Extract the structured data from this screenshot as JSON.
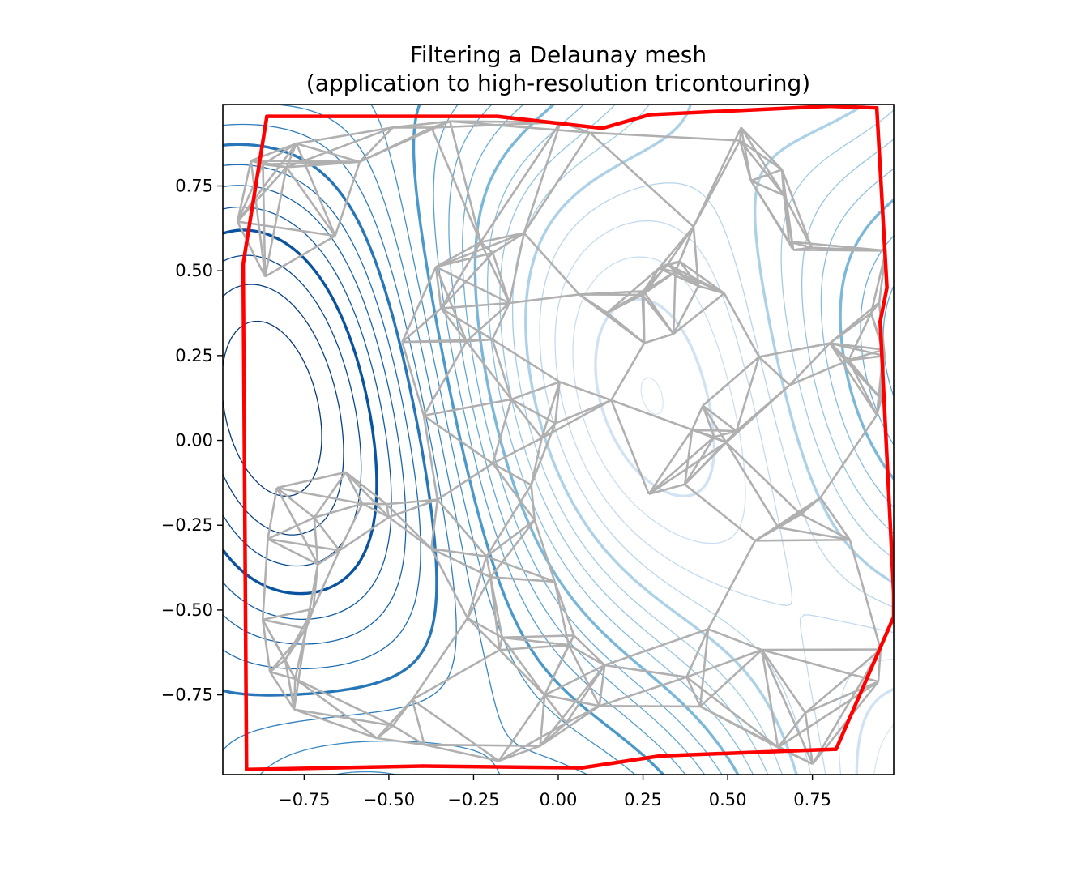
{
  "chart_data": {
    "type": "contour",
    "title_line1": "Filtering a Delaunay mesh",
    "title_line2": "(application to high-resolution tricontouring)",
    "xlim": [
      -0.99,
      0.99
    ],
    "ylim": [
      -0.985,
      0.99
    ],
    "x_ticks": [
      {
        "value": -0.75,
        "label": "−0.75"
      },
      {
        "value": -0.5,
        "label": "−0.50"
      },
      {
        "value": -0.25,
        "label": "−0.25"
      },
      {
        "value": 0.0,
        "label": "0.00"
      },
      {
        "value": 0.25,
        "label": "0.25"
      },
      {
        "value": 0.5,
        "label": "0.50"
      },
      {
        "value": 0.75,
        "label": "0.75"
      }
    ],
    "y_ticks": [
      {
        "value": 0.75,
        "label": "0.75"
      },
      {
        "value": 0.5,
        "label": "0.50"
      },
      {
        "value": 0.25,
        "label": "0.25"
      },
      {
        "value": 0.0,
        "label": "0.00"
      },
      {
        "value": -0.25,
        "label": "−0.25"
      },
      {
        "value": -0.5,
        "label": "−0.50"
      },
      {
        "value": -0.75,
        "label": "−0.75"
      }
    ],
    "grid": false,
    "colors": {
      "mesh": "#b0b0b0",
      "masked_edges": "#ff0000",
      "contour_colormap": "Blues_r",
      "contour_dark": "#08306b",
      "contour_light": "#deebf7"
    },
    "masked_boundary": [
      [
        -0.86,
        0.955
      ],
      [
        -0.18,
        0.955
      ],
      [
        0.13,
        0.92
      ],
      [
        0.27,
        0.96
      ],
      [
        0.8,
        0.985
      ],
      [
        0.94,
        0.98
      ],
      [
        0.97,
        0.45
      ],
      [
        0.95,
        0.35
      ],
      [
        0.99,
        -0.45
      ],
      [
        0.99,
        -0.52
      ],
      [
        0.82,
        -0.91
      ],
      [
        0.3,
        -0.93
      ],
      [
        0.07,
        -0.965
      ],
      [
        -0.4,
        -0.96
      ],
      [
        -0.92,
        -0.97
      ],
      [
        -0.93,
        0.52
      ],
      [
        -0.86,
        0.955
      ]
    ],
    "contour_levels": [
      -1.0,
      -0.9,
      -0.8,
      -0.7,
      -0.6,
      -0.5,
      -0.4,
      -0.3,
      -0.2,
      -0.1,
      0.0,
      0.1,
      0.2,
      0.3,
      0.4,
      0.5,
      0.6,
      0.7,
      0.8,
      0.9,
      1.0
    ],
    "mesh_point_count": 120
  }
}
